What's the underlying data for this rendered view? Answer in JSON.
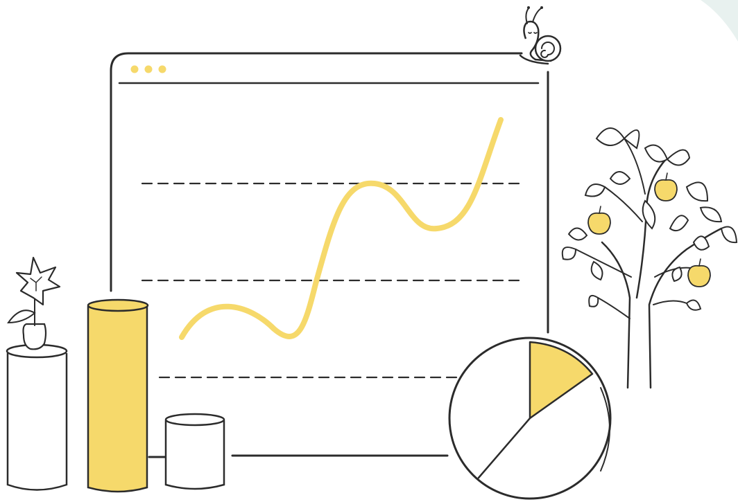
{
  "palette": {
    "ink": "#2b2b2b",
    "accent_yellow": "#f6d96b",
    "teal_background": "#e8f1ef",
    "paper": "#ffffff"
  },
  "scene": {
    "window_dots": 3,
    "gridlines": 3,
    "icons": [
      "snail-icon",
      "flower-vase-icon",
      "apple-tree-icon",
      "pie-chart-icon",
      "bar-cylinders-icon",
      "line-chart-icon"
    ]
  }
}
